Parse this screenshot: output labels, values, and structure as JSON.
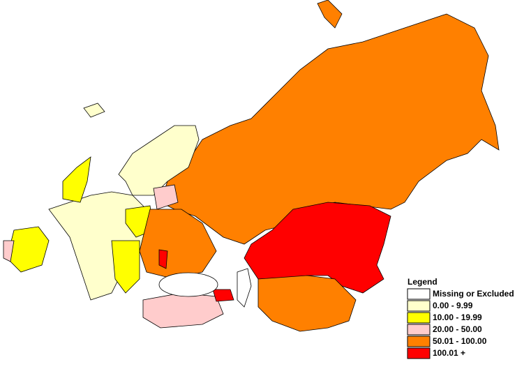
{
  "legend": {
    "title": "Legend",
    "items": [
      {
        "label": "Missing or Excluded",
        "color": "#ffffff"
      },
      {
        "label": "0.00 - 9.99",
        "color": "#ffffcc"
      },
      {
        "label": "10.00 - 19.99",
        "color": "#ffff00"
      },
      {
        "label": "20.00 - 50.00",
        "color": "#ffcccc"
      },
      {
        "label": "50.01 - 100.00",
        "color": "#ff8000"
      },
      {
        "label": "100.01 +",
        "color": "#ff0000"
      }
    ]
  }
}
